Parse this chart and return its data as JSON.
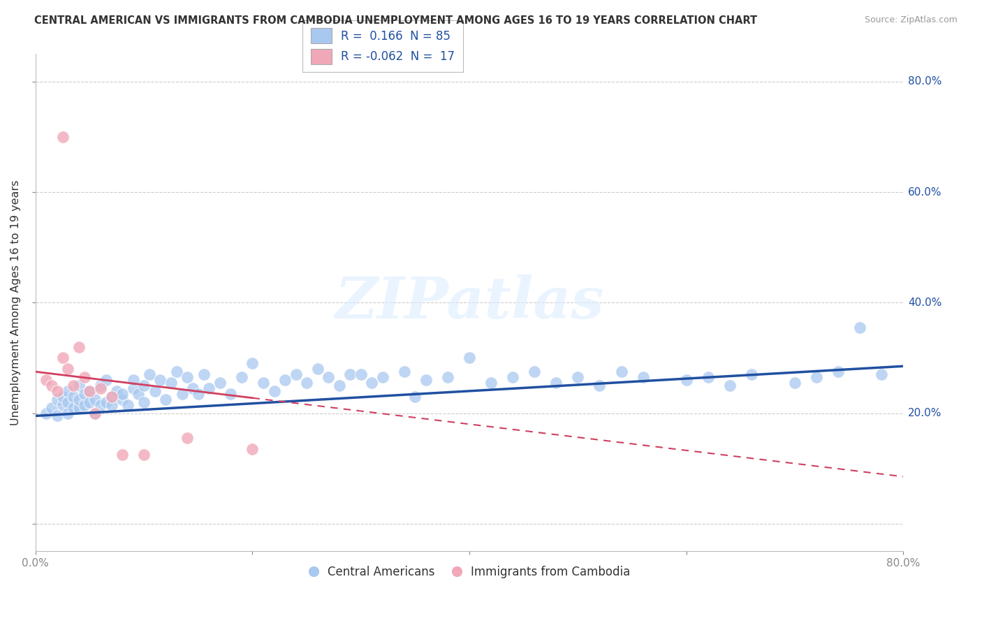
{
  "title": "CENTRAL AMERICAN VS IMMIGRANTS FROM CAMBODIA UNEMPLOYMENT AMONG AGES 16 TO 19 YEARS CORRELATION CHART",
  "source": "Source: ZipAtlas.com",
  "ylabel": "Unemployment Among Ages 16 to 19 years",
  "xlim": [
    0.0,
    0.8
  ],
  "ylim": [
    -0.05,
    0.85
  ],
  "blue_R": "0.166",
  "blue_N": "85",
  "pink_R": "-0.062",
  "pink_N": "17",
  "blue_color": "#A8C8F0",
  "pink_color": "#F0A8B8",
  "blue_line_color": "#2050A0",
  "pink_line_color": "#D04060",
  "watermark_text": "ZIPatlas",
  "legend_label1": "Central Americans",
  "legend_label2": "Immigrants from Cambodia",
  "bg_color": "#FFFFFF",
  "grid_color": "#CCCCCC",
  "blue_x": [
    0.01,
    0.015,
    0.02,
    0.02,
    0.025,
    0.025,
    0.03,
    0.03,
    0.03,
    0.035,
    0.035,
    0.04,
    0.04,
    0.04,
    0.045,
    0.045,
    0.05,
    0.05,
    0.055,
    0.055,
    0.06,
    0.06,
    0.065,
    0.065,
    0.07,
    0.07,
    0.075,
    0.08,
    0.08,
    0.085,
    0.09,
    0.09,
    0.095,
    0.1,
    0.1,
    0.105,
    0.11,
    0.115,
    0.12,
    0.125,
    0.13,
    0.135,
    0.14,
    0.145,
    0.15,
    0.155,
    0.16,
    0.17,
    0.18,
    0.19,
    0.2,
    0.21,
    0.22,
    0.23,
    0.24,
    0.25,
    0.26,
    0.27,
    0.28,
    0.29,
    0.3,
    0.31,
    0.32,
    0.34,
    0.35,
    0.36,
    0.38,
    0.4,
    0.42,
    0.44,
    0.46,
    0.48,
    0.5,
    0.52,
    0.54,
    0.56,
    0.6,
    0.62,
    0.64,
    0.66,
    0.7,
    0.72,
    0.74,
    0.76,
    0.78
  ],
  "blue_y": [
    0.2,
    0.21,
    0.225,
    0.195,
    0.215,
    0.23,
    0.22,
    0.2,
    0.24,
    0.21,
    0.23,
    0.25,
    0.21,
    0.225,
    0.215,
    0.235,
    0.22,
    0.24,
    0.225,
    0.2,
    0.25,
    0.215,
    0.26,
    0.22,
    0.23,
    0.215,
    0.24,
    0.225,
    0.235,
    0.215,
    0.245,
    0.26,
    0.235,
    0.25,
    0.22,
    0.27,
    0.24,
    0.26,
    0.225,
    0.255,
    0.275,
    0.235,
    0.265,
    0.245,
    0.235,
    0.27,
    0.245,
    0.255,
    0.235,
    0.265,
    0.29,
    0.255,
    0.24,
    0.26,
    0.27,
    0.255,
    0.28,
    0.265,
    0.25,
    0.27,
    0.27,
    0.255,
    0.265,
    0.275,
    0.23,
    0.26,
    0.265,
    0.3,
    0.255,
    0.265,
    0.275,
    0.255,
    0.265,
    0.25,
    0.275,
    0.265,
    0.26,
    0.265,
    0.25,
    0.27,
    0.255,
    0.265,
    0.275,
    0.355,
    0.27
  ],
  "pink_x": [
    0.01,
    0.015,
    0.02,
    0.025,
    0.025,
    0.03,
    0.035,
    0.04,
    0.045,
    0.05,
    0.055,
    0.06,
    0.07,
    0.08,
    0.1,
    0.14,
    0.2
  ],
  "pink_y": [
    0.26,
    0.25,
    0.24,
    0.7,
    0.3,
    0.28,
    0.25,
    0.32,
    0.265,
    0.24,
    0.2,
    0.245,
    0.23,
    0.125,
    0.125,
    0.155,
    0.135
  ],
  "blue_trend_x0": 0.0,
  "blue_trend_y0": 0.195,
  "blue_trend_x1": 0.8,
  "blue_trend_y1": 0.285,
  "pink_trend_x0": 0.0,
  "pink_trend_y0": 0.275,
  "pink_trend_x1": 0.8,
  "pink_trend_y1": 0.085
}
